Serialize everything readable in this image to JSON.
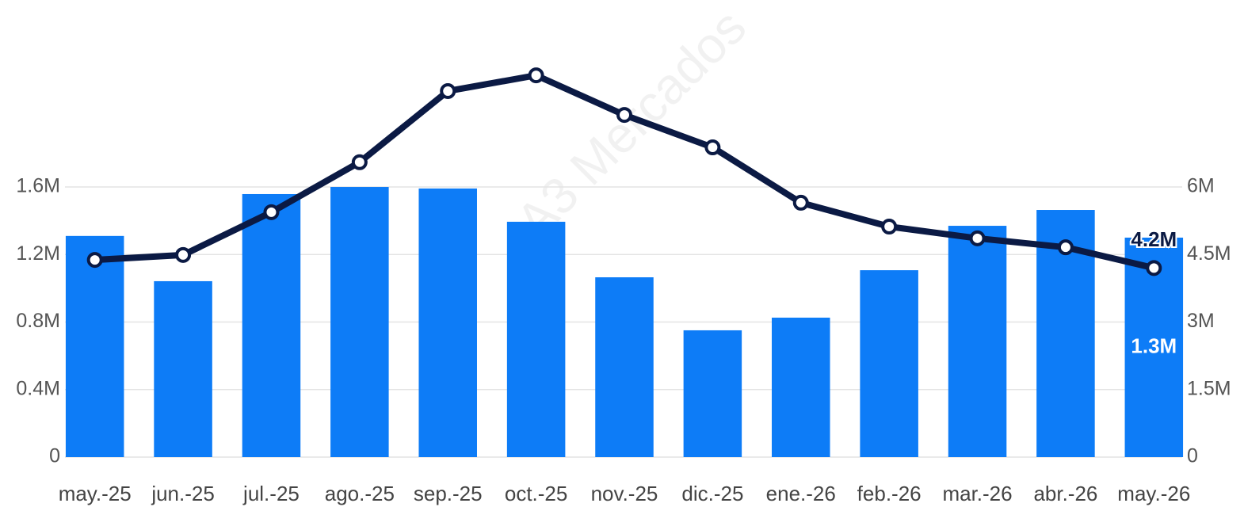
{
  "chart_data": {
    "type": "bar-line",
    "watermark": "A3 Mercados",
    "categories": [
      "may.-25",
      "jun.-25",
      "jul.-25",
      "ago.-25",
      "sep.-25",
      "oct.-25",
      "nov.-25",
      "dic.-25",
      "ene.-26",
      "feb.-26",
      "mar.-26",
      "abr.-26",
      "may.-26"
    ],
    "series": [
      {
        "type": "bar",
        "color": "#0d7cf7",
        "values": [
          1310000,
          1042000,
          1558000,
          1600000,
          1591000,
          1394000,
          1065000,
          751000,
          826000,
          1107000,
          1370000,
          1464000,
          1300000
        ],
        "value_labels": [
          null,
          null,
          null,
          null,
          null,
          null,
          null,
          null,
          null,
          null,
          null,
          null,
          "1.3M"
        ]
      },
      {
        "type": "line",
        "axis": "y2",
        "color": "#0b1a44",
        "values": [
          4380000,
          4490000,
          5440000,
          6550000,
          8130000,
          8480000,
          7600000,
          6880000,
          5650000,
          5120000,
          4860000,
          4660000,
          4200000
        ],
        "value_labels": [
          null,
          null,
          null,
          null,
          null,
          null,
          null,
          null,
          null,
          null,
          null,
          null,
          "4.2M"
        ]
      }
    ],
    "ylim": [
      0,
      2640000
    ],
    "yticks": [
      0,
      {
        "value": 400000,
        "label": "0.4M"
      },
      {
        "value": 800000,
        "label": "0.8M"
      },
      {
        "value": 1200000,
        "label": "1.2M"
      },
      {
        "value": 1600000,
        "label": "1.6M"
      }
    ],
    "y2lim": [
      0,
      9900000
    ],
    "y2ticks": [
      0,
      {
        "value": 1500000,
        "label": "1.5M"
      },
      {
        "value": 3000000,
        "label": "3M"
      },
      {
        "value": 4500000,
        "label": "4.5M"
      },
      {
        "value": 6000000,
        "label": "6M"
      }
    ],
    "grid": true
  }
}
